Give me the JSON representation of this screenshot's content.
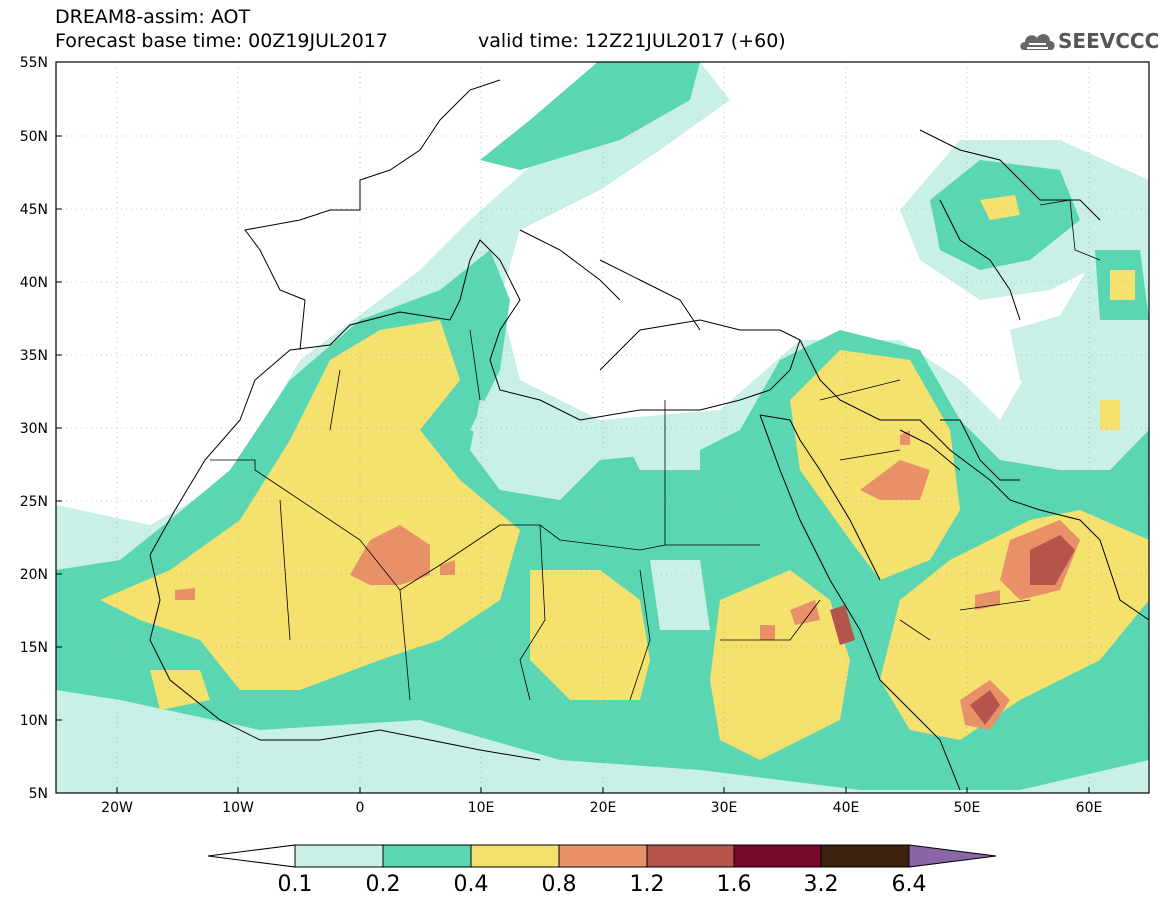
{
  "header": {
    "title_line1": "DREAM8-assim: AOT",
    "title_line2": "Forecast base time: 00Z19JUL2017",
    "valid_time": "valid time: 12Z21JUL2017 (+60)"
  },
  "logo": {
    "icon": "cloud-icon",
    "text": "SEEVCCC"
  },
  "map": {
    "lat_labels": [
      "55N",
      "50N",
      "45N",
      "40N",
      "35N",
      "30N",
      "25N",
      "20N",
      "15N",
      "10N",
      "5N"
    ],
    "lon_labels": [
      "20W",
      "10W",
      "0",
      "10E",
      "20E",
      "30E",
      "40E",
      "50E",
      "60E"
    ],
    "lat_range": [
      5,
      55
    ],
    "lon_range": [
      -25,
      65
    ]
  },
  "colorbar": {
    "labels": [
      "0.1",
      "0.2",
      "0.4",
      "0.8",
      "1.2",
      "1.6",
      "3.2",
      "6.4"
    ],
    "colors": [
      "#ffffff",
      "#c8f0e6",
      "#5ad7b2",
      "#f5e16e",
      "#e89168",
      "#b5544a",
      "#7a0a2a",
      "#3d2210",
      "#8a66a8"
    ]
  },
  "colors": {
    "c1": "#c8f0e6",
    "c2": "#5ad7b2",
    "c3": "#f5e16e",
    "c4": "#e89168",
    "c5": "#b5544a"
  }
}
